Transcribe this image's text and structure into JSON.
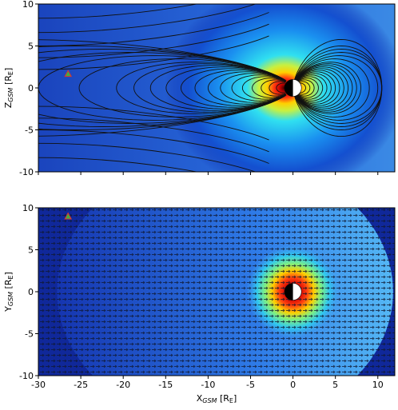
{
  "chart_data": [
    {
      "type": "field",
      "xlim": [
        -30,
        12
      ],
      "ylim": [
        -10,
        10
      ],
      "xticks": [
        -30,
        -25,
        -20,
        -15,
        -10,
        -5,
        0,
        5,
        10
      ],
      "yticks": [
        -10,
        -5,
        0,
        5,
        10
      ],
      "show_xtick_labels": false,
      "ylabel": [
        "Z",
        "GSM",
        " [R",
        "E",
        "]"
      ],
      "field_lines": true,
      "quiver": false,
      "points": {
        "x": [
          -26.5
        ],
        "y": [
          1.7
        ],
        "color": "#3cb043",
        "edge": "#e03030"
      }
    },
    {
      "type": "field",
      "xlim": [
        -30,
        12
      ],
      "ylim": [
        -10,
        10
      ],
      "xticks": [
        -30,
        -25,
        -20,
        -15,
        -10,
        -5,
        0,
        5,
        10
      ],
      "yticks": [
        -10,
        -5,
        0,
        5,
        10
      ],
      "show_xtick_labels": true,
      "xlabel": [
        "X",
        "GSM",
        " [R",
        "E",
        "]"
      ],
      "ylabel": [
        "Y",
        "GSM",
        " [R",
        "E",
        "]"
      ],
      "field_lines": false,
      "quiver": true,
      "points": {
        "x": [
          -26.5
        ],
        "y": [
          9
        ],
        "color": "#3cb043",
        "edge": "#e03030"
      }
    }
  ]
}
